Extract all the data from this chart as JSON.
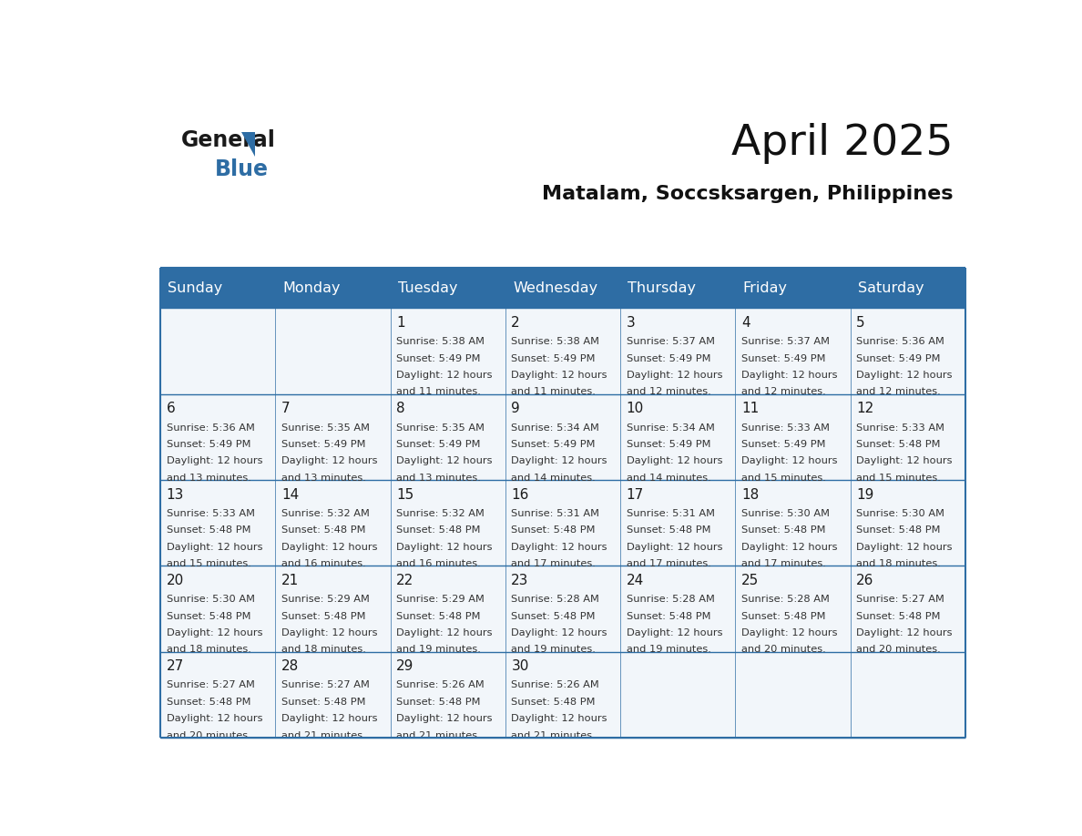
{
  "title": "April 2025",
  "subtitle": "Matalam, Soccsksargen, Philippines",
  "header_bg_color": "#2E6DA4",
  "header_text_color": "#FFFFFF",
  "cell_bg_color": "#F2F6FA",
  "bg_color": "#FFFFFF",
  "line_color": "#2E6DA4",
  "day_number_color": "#1a1a1a",
  "cell_text_color": "#333333",
  "logo_general_color": "#1a1a1a",
  "logo_blue_color": "#2E6DA4",
  "day_names": [
    "Sunday",
    "Monday",
    "Tuesday",
    "Wednesday",
    "Thursday",
    "Friday",
    "Saturday"
  ],
  "days": [
    {
      "date": 1,
      "col": 2,
      "row": 0,
      "sunrise": "5:38 AM",
      "sunset": "5:49 PM",
      "daylight_hours": 12,
      "daylight_minutes": 11
    },
    {
      "date": 2,
      "col": 3,
      "row": 0,
      "sunrise": "5:38 AM",
      "sunset": "5:49 PM",
      "daylight_hours": 12,
      "daylight_minutes": 11
    },
    {
      "date": 3,
      "col": 4,
      "row": 0,
      "sunrise": "5:37 AM",
      "sunset": "5:49 PM",
      "daylight_hours": 12,
      "daylight_minutes": 12
    },
    {
      "date": 4,
      "col": 5,
      "row": 0,
      "sunrise": "5:37 AM",
      "sunset": "5:49 PM",
      "daylight_hours": 12,
      "daylight_minutes": 12
    },
    {
      "date": 5,
      "col": 6,
      "row": 0,
      "sunrise": "5:36 AM",
      "sunset": "5:49 PM",
      "daylight_hours": 12,
      "daylight_minutes": 12
    },
    {
      "date": 6,
      "col": 0,
      "row": 1,
      "sunrise": "5:36 AM",
      "sunset": "5:49 PM",
      "daylight_hours": 12,
      "daylight_minutes": 13
    },
    {
      "date": 7,
      "col": 1,
      "row": 1,
      "sunrise": "5:35 AM",
      "sunset": "5:49 PM",
      "daylight_hours": 12,
      "daylight_minutes": 13
    },
    {
      "date": 8,
      "col": 2,
      "row": 1,
      "sunrise": "5:35 AM",
      "sunset": "5:49 PM",
      "daylight_hours": 12,
      "daylight_minutes": 13
    },
    {
      "date": 9,
      "col": 3,
      "row": 1,
      "sunrise": "5:34 AM",
      "sunset": "5:49 PM",
      "daylight_hours": 12,
      "daylight_minutes": 14
    },
    {
      "date": 10,
      "col": 4,
      "row": 1,
      "sunrise": "5:34 AM",
      "sunset": "5:49 PM",
      "daylight_hours": 12,
      "daylight_minutes": 14
    },
    {
      "date": 11,
      "col": 5,
      "row": 1,
      "sunrise": "5:33 AM",
      "sunset": "5:49 PM",
      "daylight_hours": 12,
      "daylight_minutes": 15
    },
    {
      "date": 12,
      "col": 6,
      "row": 1,
      "sunrise": "5:33 AM",
      "sunset": "5:48 PM",
      "daylight_hours": 12,
      "daylight_minutes": 15
    },
    {
      "date": 13,
      "col": 0,
      "row": 2,
      "sunrise": "5:33 AM",
      "sunset": "5:48 PM",
      "daylight_hours": 12,
      "daylight_minutes": 15
    },
    {
      "date": 14,
      "col": 1,
      "row": 2,
      "sunrise": "5:32 AM",
      "sunset": "5:48 PM",
      "daylight_hours": 12,
      "daylight_minutes": 16
    },
    {
      "date": 15,
      "col": 2,
      "row": 2,
      "sunrise": "5:32 AM",
      "sunset": "5:48 PM",
      "daylight_hours": 12,
      "daylight_minutes": 16
    },
    {
      "date": 16,
      "col": 3,
      "row": 2,
      "sunrise": "5:31 AM",
      "sunset": "5:48 PM",
      "daylight_hours": 12,
      "daylight_minutes": 17
    },
    {
      "date": 17,
      "col": 4,
      "row": 2,
      "sunrise": "5:31 AM",
      "sunset": "5:48 PM",
      "daylight_hours": 12,
      "daylight_minutes": 17
    },
    {
      "date": 18,
      "col": 5,
      "row": 2,
      "sunrise": "5:30 AM",
      "sunset": "5:48 PM",
      "daylight_hours": 12,
      "daylight_minutes": 17
    },
    {
      "date": 19,
      "col": 6,
      "row": 2,
      "sunrise": "5:30 AM",
      "sunset": "5:48 PM",
      "daylight_hours": 12,
      "daylight_minutes": 18
    },
    {
      "date": 20,
      "col": 0,
      "row": 3,
      "sunrise": "5:30 AM",
      "sunset": "5:48 PM",
      "daylight_hours": 12,
      "daylight_minutes": 18
    },
    {
      "date": 21,
      "col": 1,
      "row": 3,
      "sunrise": "5:29 AM",
      "sunset": "5:48 PM",
      "daylight_hours": 12,
      "daylight_minutes": 18
    },
    {
      "date": 22,
      "col": 2,
      "row": 3,
      "sunrise": "5:29 AM",
      "sunset": "5:48 PM",
      "daylight_hours": 12,
      "daylight_minutes": 19
    },
    {
      "date": 23,
      "col": 3,
      "row": 3,
      "sunrise": "5:28 AM",
      "sunset": "5:48 PM",
      "daylight_hours": 12,
      "daylight_minutes": 19
    },
    {
      "date": 24,
      "col": 4,
      "row": 3,
      "sunrise": "5:28 AM",
      "sunset": "5:48 PM",
      "daylight_hours": 12,
      "daylight_minutes": 19
    },
    {
      "date": 25,
      "col": 5,
      "row": 3,
      "sunrise": "5:28 AM",
      "sunset": "5:48 PM",
      "daylight_hours": 12,
      "daylight_minutes": 20
    },
    {
      "date": 26,
      "col": 6,
      "row": 3,
      "sunrise": "5:27 AM",
      "sunset": "5:48 PM",
      "daylight_hours": 12,
      "daylight_minutes": 20
    },
    {
      "date": 27,
      "col": 0,
      "row": 4,
      "sunrise": "5:27 AM",
      "sunset": "5:48 PM",
      "daylight_hours": 12,
      "daylight_minutes": 20
    },
    {
      "date": 28,
      "col": 1,
      "row": 4,
      "sunrise": "5:27 AM",
      "sunset": "5:48 PM",
      "daylight_hours": 12,
      "daylight_minutes": 21
    },
    {
      "date": 29,
      "col": 2,
      "row": 4,
      "sunrise": "5:26 AM",
      "sunset": "5:48 PM",
      "daylight_hours": 12,
      "daylight_minutes": 21
    },
    {
      "date": 30,
      "col": 3,
      "row": 4,
      "sunrise": "5:26 AM",
      "sunset": "5:48 PM",
      "daylight_hours": 12,
      "daylight_minutes": 21
    }
  ]
}
